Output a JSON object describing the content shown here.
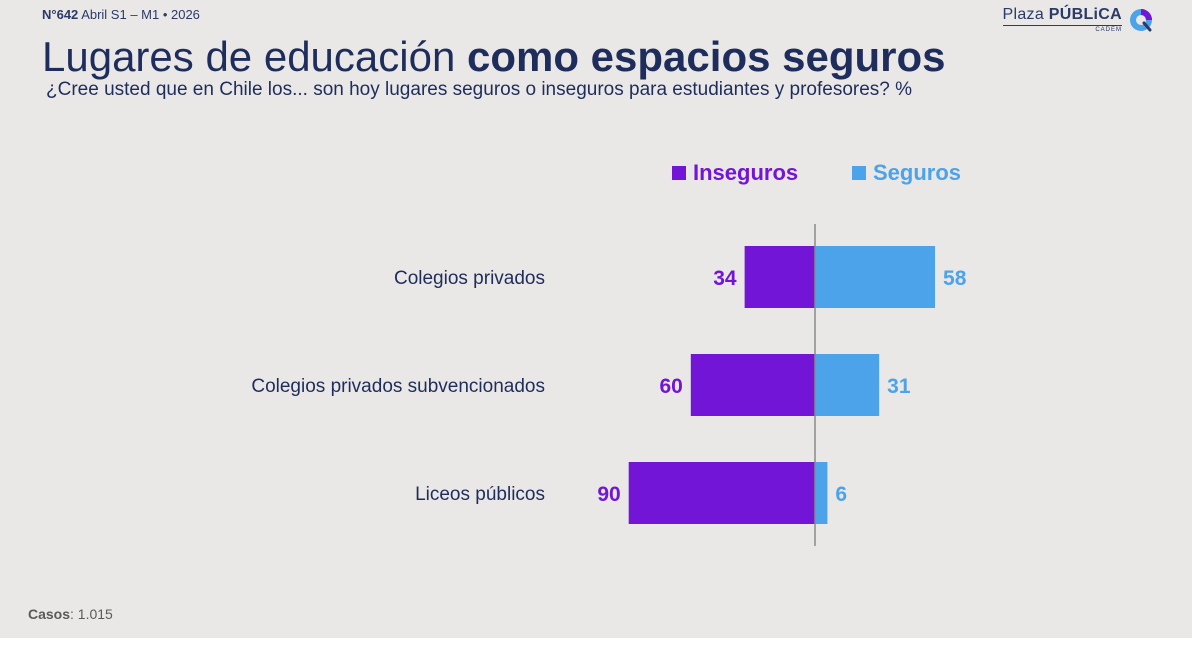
{
  "header": {
    "issue_number": "N°642",
    "issue_rest": "Abril S1 – M1 • 2026"
  },
  "brand": {
    "name_light": "Plaza",
    "name_bold": "PÚBLiCA",
    "sub": "CADEM"
  },
  "title": {
    "light": "Lugares de educación",
    "bold": "como espacios seguros"
  },
  "subtitle": "¿Cree usted que en Chile los... son hoy lugares seguros o inseguros para estudiantes y profesores? %",
  "footer": {
    "label": "Casos",
    "value": ": 1.015"
  },
  "colors": {
    "inseguros": "#7215d6",
    "seguros": "#4ca3ea",
    "axis": "#8a8a8a",
    "category_text": "#1f2d5c"
  },
  "chart_data": {
    "type": "bar",
    "orientation": "horizontal-diverging",
    "categories": [
      "Colegios privados",
      "Colegios privados subvencionados",
      "Liceos públicos"
    ],
    "series": [
      {
        "name": "Inseguros",
        "values": [
          34,
          60,
          90
        ]
      },
      {
        "name": "Seguros",
        "values": [
          58,
          31,
          6
        ]
      }
    ],
    "unit": "%",
    "legend": "top",
    "grid": false
  }
}
